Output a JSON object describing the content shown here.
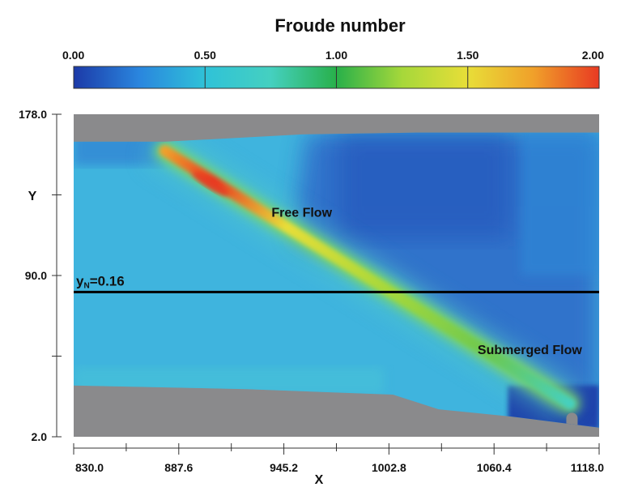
{
  "chart_data": {
    "type": "heatmap",
    "title": "Froude number",
    "colorbar": {
      "min": 0.0,
      "max": 2.0,
      "ticks": [
        "0.00",
        "0.50",
        "1.00",
        "1.50",
        "2.00"
      ],
      "tick_values": [
        0.0,
        0.5,
        1.0,
        1.5,
        2.0
      ],
      "colors": [
        "#1c3aa8",
        "#2a86de",
        "#2fc2d8",
        "#45d0c0",
        "#28b04a",
        "#a6d83a",
        "#e8de38",
        "#f0a02a",
        "#e83a22"
      ]
    },
    "xlabel": "X",
    "ylabel": "Y",
    "xlim": [
      830.0,
      1118.0
    ],
    "ylim": [
      2.0,
      178.0
    ],
    "xticks": [
      "830.0",
      "887.6",
      "945.2",
      "1002.8",
      "1060.4",
      "1118.0"
    ],
    "xtick_values": [
      830.0,
      887.6,
      945.2,
      1002.8,
      1060.4,
      1118.0
    ],
    "yticks": [
      "178.0",
      "90.0",
      "2.0"
    ],
    "ytick_values": [
      178.0,
      90.0,
      2.0
    ],
    "reference_line": {
      "label": "y",
      "subscript": "N",
      "suffix": "=0.16",
      "y": 81.0
    },
    "annotations": [
      {
        "text": "Free Flow",
        "x": 955,
        "y": 122
      },
      {
        "text": "Submerged Flow",
        "x": 1080,
        "y": 47
      }
    ],
    "jet": {
      "x_start": 880,
      "y_start": 158,
      "x_end": 1102,
      "y_end": 20,
      "peak_x": 905,
      "peak_y": 140
    },
    "domain_top": [
      [
        830,
        163
      ],
      [
        880,
        163
      ],
      [
        955,
        167
      ],
      [
        1018,
        168
      ],
      [
        1118,
        168
      ]
    ],
    "domain_bottom": [
      [
        830,
        30
      ],
      [
        925,
        28
      ],
      [
        1005,
        25
      ],
      [
        1030,
        17
      ],
      [
        1070,
        13
      ],
      [
        1118,
        7
      ]
    ],
    "colors": {
      "background_gray": "#8a8a8c",
      "water_base": "#3fb4de",
      "downstream_pool": "#2f67c8"
    }
  }
}
